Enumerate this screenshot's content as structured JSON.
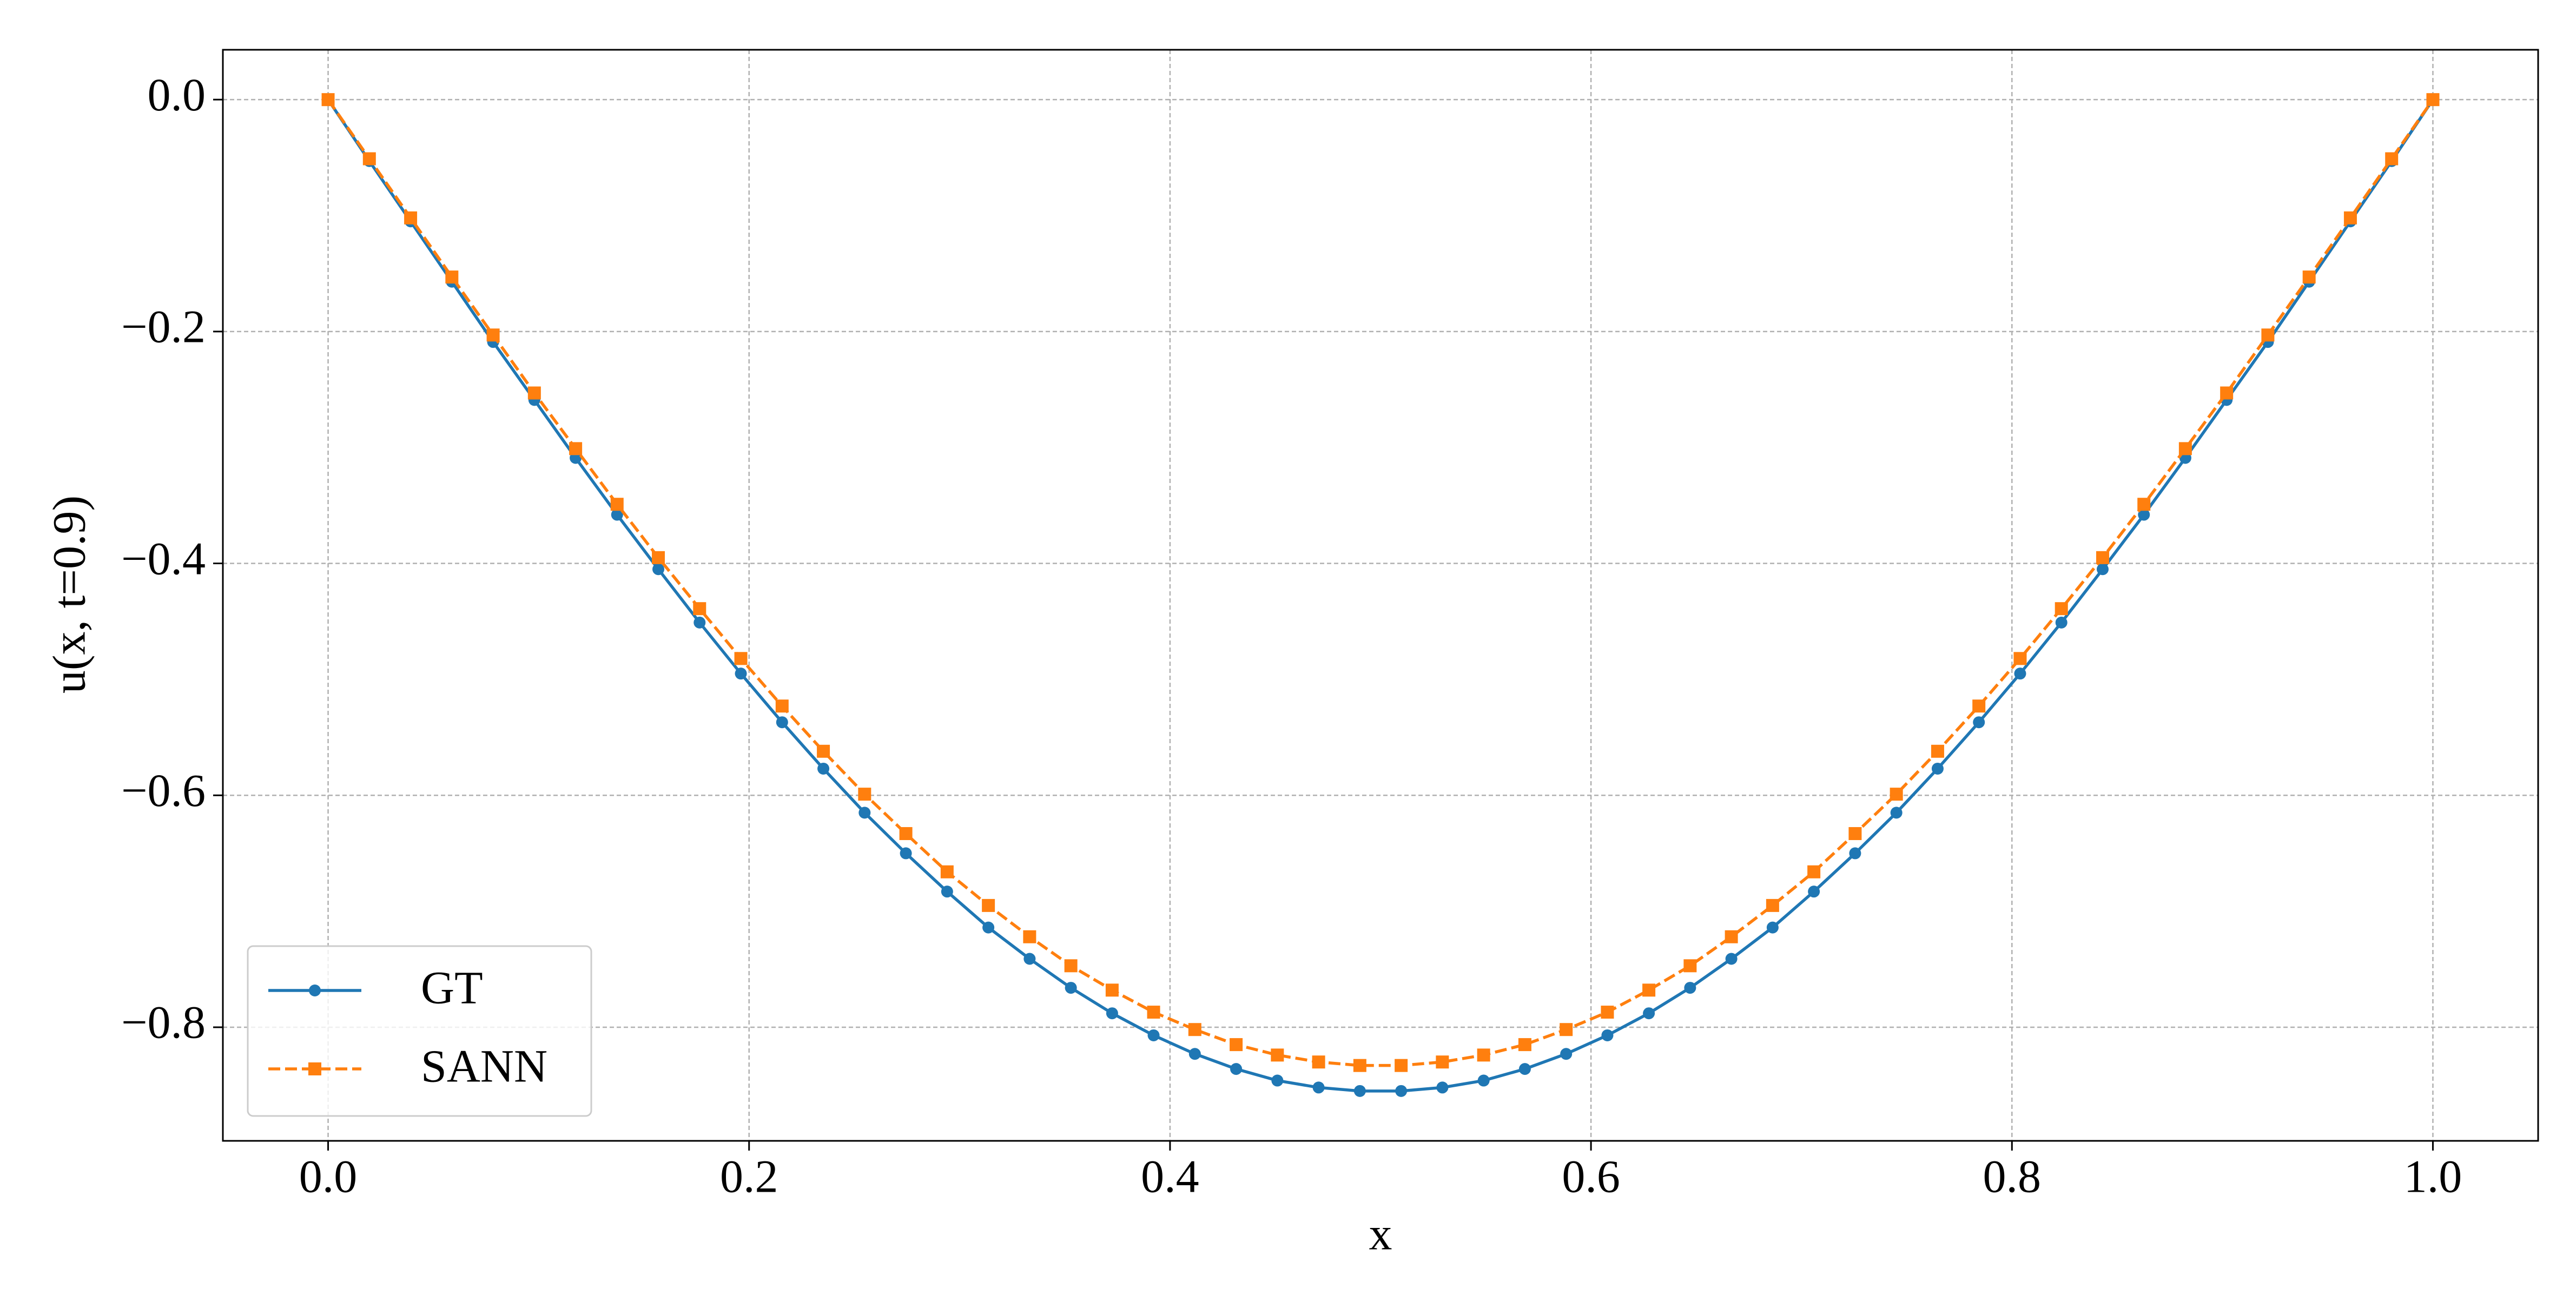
{
  "chart_data": {
    "type": "line",
    "xlabel": "x",
    "ylabel": "u(x, t=0.9)",
    "x": [
      0,
      0.0196,
      0.0392,
      0.0588,
      0.0784,
      0.098,
      0.1176,
      0.1373,
      0.1569,
      0.1765,
      0.1961,
      0.2157,
      0.2353,
      0.2549,
      0.2745,
      0.2941,
      0.3137,
      0.3333,
      0.3529,
      0.3725,
      0.3922,
      0.4118,
      0.4314,
      0.451,
      0.4706,
      0.4902,
      0.5098,
      0.5294,
      0.549,
      0.5686,
      0.5882,
      0.6078,
      0.6275,
      0.6471,
      0.6667,
      0.6863,
      0.7059,
      0.7255,
      0.7451,
      0.7647,
      0.7843,
      0.8039,
      0.8235,
      0.8431,
      0.8627,
      0.8824,
      0.902,
      0.9216,
      0.9412,
      0.9608,
      0.9804,
      1
    ],
    "series": [
      {
        "name": "GT",
        "color": "#1f77b4",
        "marker": "circle",
        "linestyle": "solid",
        "values": [
          0,
          -0.053,
          -0.105,
          -0.157,
          -0.209,
          -0.259,
          -0.309,
          -0.358,
          -0.405,
          -0.451,
          -0.495,
          -0.537,
          -0.577,
          -0.615,
          -0.65,
          -0.683,
          -0.714,
          -0.741,
          -0.766,
          -0.788,
          -0.807,
          -0.823,
          -0.836,
          -0.846,
          -0.852,
          -0.855,
          -0.855,
          -0.852,
          -0.846,
          -0.836,
          -0.823,
          -0.807,
          -0.788,
          -0.766,
          -0.741,
          -0.714,
          -0.683,
          -0.65,
          -0.615,
          -0.577,
          -0.537,
          -0.495,
          -0.451,
          -0.405,
          -0.358,
          -0.309,
          -0.259,
          -0.209,
          -0.157,
          -0.105,
          -0.053,
          0
        ]
      },
      {
        "name": "SANN",
        "color": "#ff7f0e",
        "marker": "square",
        "linestyle": "dashed",
        "values": [
          0,
          -0.051,
          -0.102,
          -0.153,
          -0.203,
          -0.253,
          -0.301,
          -0.349,
          -0.395,
          -0.439,
          -0.482,
          -0.523,
          -0.562,
          -0.599,
          -0.633,
          -0.666,
          -0.695,
          -0.722,
          -0.747,
          -0.768,
          -0.787,
          -0.802,
          -0.815,
          -0.824,
          -0.83,
          -0.833,
          -0.833,
          -0.83,
          -0.824,
          -0.815,
          -0.802,
          -0.787,
          -0.768,
          -0.747,
          -0.722,
          -0.695,
          -0.666,
          -0.633,
          -0.599,
          -0.562,
          -0.523,
          -0.482,
          -0.439,
          -0.395,
          -0.349,
          -0.301,
          -0.253,
          -0.203,
          -0.153,
          -0.102,
          -0.051,
          0
        ]
      }
    ],
    "xlim": [
      -0.05,
      1.05
    ],
    "ylim": [
      -0.898,
      0.043
    ],
    "xticks": [
      {
        "value": 0,
        "label": "0.0"
      },
      {
        "value": 0.2,
        "label": "0.2"
      },
      {
        "value": 0.4,
        "label": "0.4"
      },
      {
        "value": 0.6,
        "label": "0.6"
      },
      {
        "value": 0.8,
        "label": "0.8"
      },
      {
        "value": 1,
        "label": "1.0"
      }
    ],
    "yticks": [
      {
        "value": 0,
        "label": "0.0"
      },
      {
        "value": -0.2,
        "label": "−0.2"
      },
      {
        "value": -0.4,
        "label": "−0.4"
      },
      {
        "value": -0.6,
        "label": "−0.6"
      },
      {
        "value": -0.8,
        "label": "−0.8"
      }
    ],
    "grid": true,
    "legend": "lower left"
  }
}
